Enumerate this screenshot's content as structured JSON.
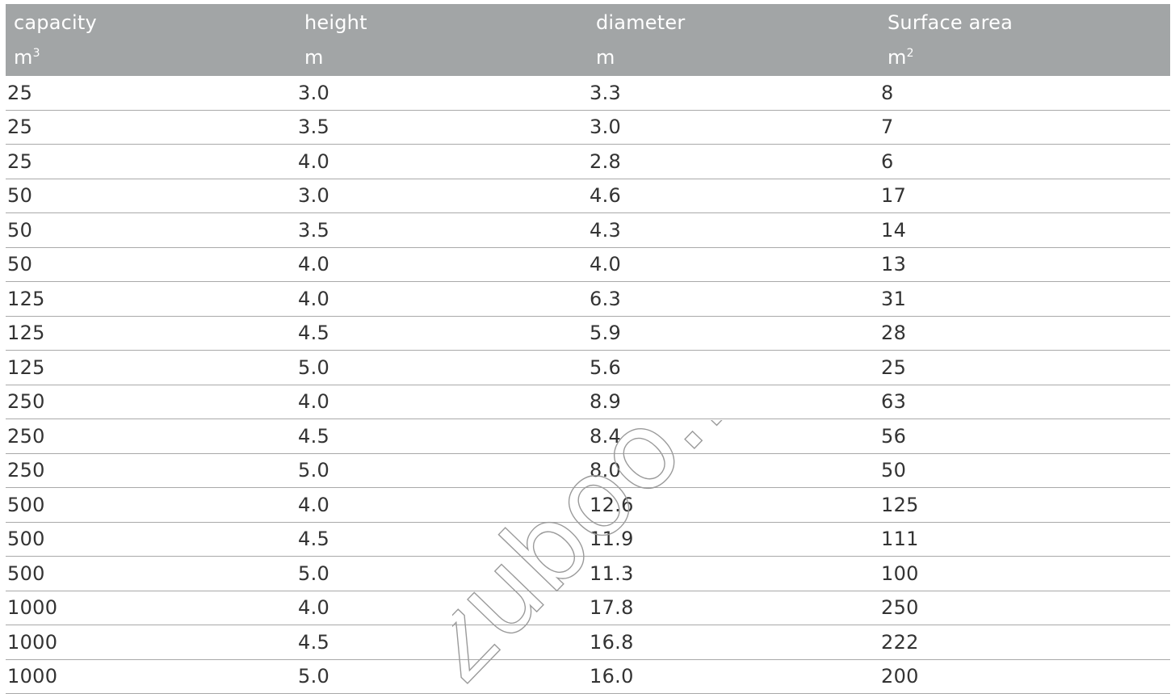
{
  "table": {
    "headers": [
      {
        "label": "capacity",
        "unit": "m",
        "unit_sup": "3"
      },
      {
        "label": "height",
        "unit": "m",
        "unit_sup": ""
      },
      {
        "label": "diameter",
        "unit": "m",
        "unit_sup": ""
      },
      {
        "label": "Surface area",
        "unit": "m",
        "unit_sup": "2"
      }
    ],
    "rows": [
      [
        "25",
        "3.0",
        "3.3",
        "8"
      ],
      [
        "25",
        "3.5",
        "3.0",
        "7"
      ],
      [
        "25",
        "4.0",
        "2.8",
        "6"
      ],
      [
        "50",
        "3.0",
        "4.6",
        "17"
      ],
      [
        "50",
        "3.5",
        "4.3",
        "14"
      ],
      [
        "50",
        "4.0",
        "4.0",
        "13"
      ],
      [
        "125",
        "4.0",
        "6.3",
        "31"
      ],
      [
        "125",
        "4.5",
        "5.9",
        "28"
      ],
      [
        "125",
        "5.0",
        "5.6",
        "25"
      ],
      [
        "250",
        "4.0",
        "8.9",
        "63"
      ],
      [
        "250",
        "4.5",
        "8.4",
        "56"
      ],
      [
        "250",
        "5.0",
        "8.0",
        "50"
      ],
      [
        "500",
        "4.0",
        "12.6",
        "125"
      ],
      [
        "500",
        "4.5",
        "11.9",
        "111"
      ],
      [
        "500",
        "5.0",
        "11.3",
        "100"
      ],
      [
        "1000",
        "4.0",
        "17.8",
        "250"
      ],
      [
        "1000",
        "4.5",
        "16.8",
        "222"
      ],
      [
        "1000",
        "5.0",
        "16.0",
        "200"
      ]
    ]
  },
  "watermark": {
    "text": "zuboo.nl"
  },
  "colors": {
    "header_bg": "#a2a5a6",
    "header_text": "#ffffff",
    "row_border": "#a9a9a9",
    "body_text": "#333333"
  }
}
